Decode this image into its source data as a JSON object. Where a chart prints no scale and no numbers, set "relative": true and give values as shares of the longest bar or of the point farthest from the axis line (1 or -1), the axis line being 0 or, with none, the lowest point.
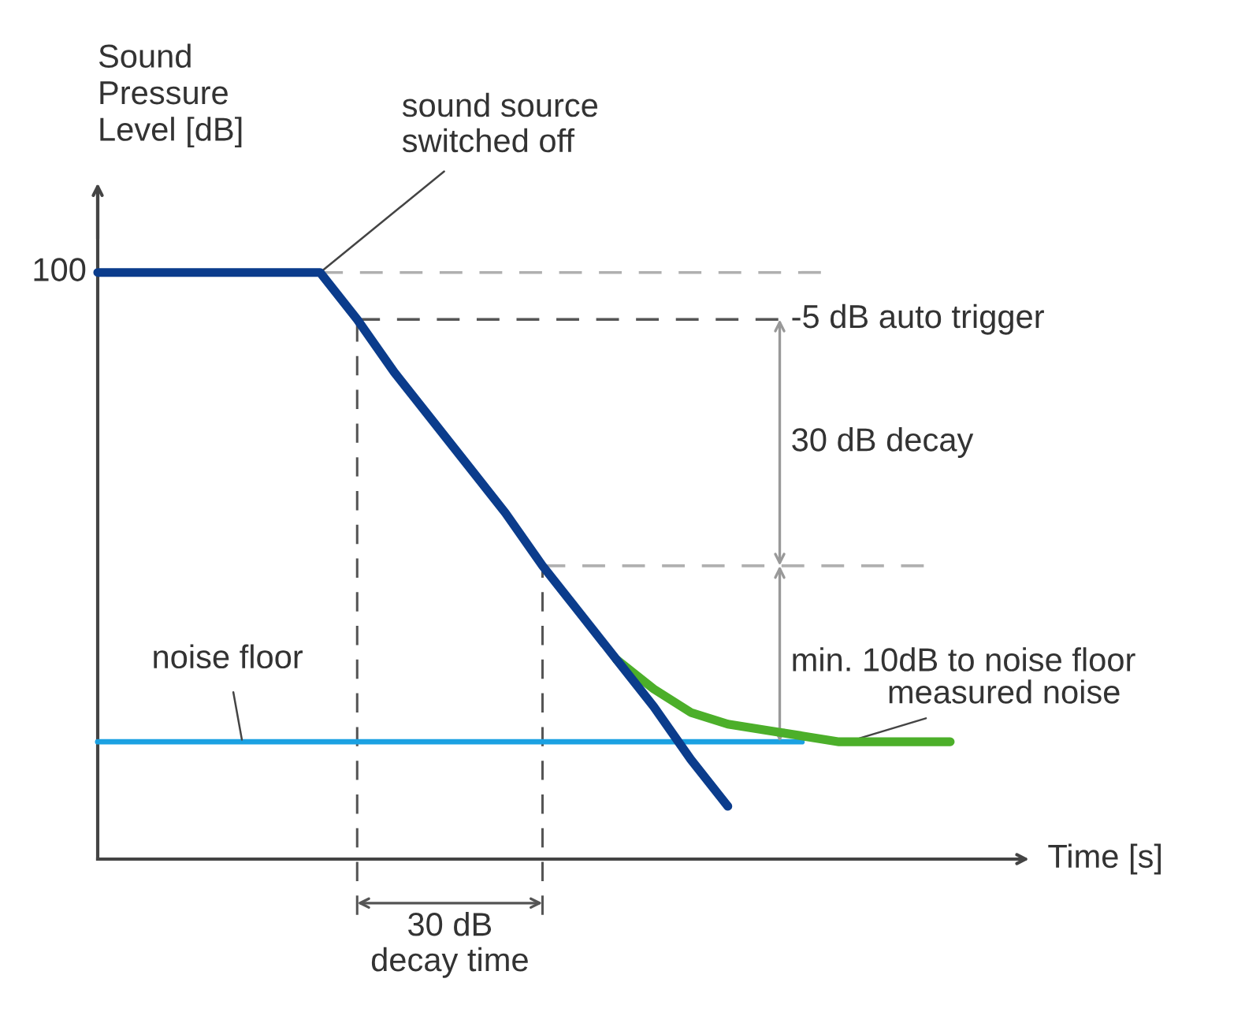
{
  "chart_data": {
    "type": "line",
    "relative": true,
    "xlabel": "Time [s]",
    "ylabel": "Sound\nPressure\nLevel [dB]",
    "categories": [
      null,
      null,
      null,
      null,
      null,
      null,
      null,
      null,
      null,
      null,
      null,
      null,
      null,
      null,
      null,
      null,
      null,
      null,
      null,
      null,
      null,
      null,
      null,
      null,
      null,
      null
    ],
    "series": [
      {
        "color": "#0b3c8c",
        "values": [
          1,
          1,
          1,
          1,
          1,
          1,
          1,
          0.92,
          0.83,
          0.75,
          0.67,
          0.59,
          0.5,
          0.42,
          0.34,
          0.26,
          0.17,
          0.09,
          null,
          null,
          null,
          null,
          null,
          null,
          null,
          null
        ]
      },
      {
        "color": "#4caf2a",
        "values": [
          null,
          null,
          null,
          null,
          null,
          null,
          null,
          null,
          null,
          null,
          null,
          null,
          null,
          null,
          0.34,
          0.29,
          0.25,
          0.23,
          0.22,
          0.21,
          0.2,
          0.2,
          0.2,
          0.2,
          null,
          null
        ]
      },
      {
        "color": "#1ba1e2",
        "values": [
          0.2,
          0.2,
          0.2,
          0.2,
          0.2,
          0.2,
          0.2,
          0.2,
          0.2,
          0.2,
          0.2,
          0.2,
          0.2,
          0.2,
          0.2,
          0.2,
          0.2,
          0.2,
          0.2,
          0.2,
          null,
          null,
          null,
          null,
          null,
          null
        ]
      }
    ],
    "ref_lines": [
      {
        "axis": "y",
        "value": 1,
        "color": "#b0b0b0",
        "line_style": "dashed"
      },
      {
        "axis": "y",
        "value": 0.92,
        "color": "#555555",
        "line_style": "dashed"
      },
      {
        "axis": "y",
        "value": 0.5,
        "color": "#b0b0b0",
        "line_style": "dashed"
      }
    ],
    "annotations": [
      "100",
      "sound source\nswitched off",
      "-5 dB auto trigger",
      "30 dB decay",
      "min. 10dB to noise floor",
      "measured noise",
      "noise floor",
      "30 dB\ndecay time"
    ],
    "marker": "none",
    "line_style": "solid"
  }
}
